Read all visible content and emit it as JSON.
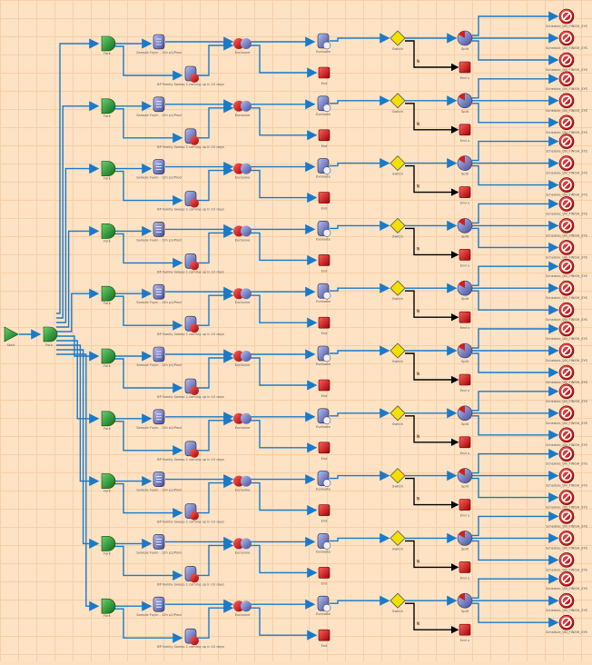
{
  "diagram": {
    "start": {
      "label": "Start",
      "icon": "start-triangle-icon"
    },
    "main_fork": {
      "label": "Fork"
    },
    "colors": {
      "edge": "#1a7ac8",
      "no_edge": "#000000",
      "fork": "#1f8a2a",
      "end": "#d01818",
      "decision": "#f4e000",
      "background": "#fde2c4"
    },
    "row_template": {
      "fork": "Fork",
      "sample": "Sample Fuyin - 12h p1/Prod",
      "bp": "BP Family Sweep 1 coming up in 10 days",
      "exclusive": "Exclusive",
      "evaluate": "Evaluate",
      "end": "End",
      "switch": "Switch",
      "end_u": "End u",
      "split": "Split",
      "targets": [
        "Schedule_UN_FINISH_SYS",
        "Schedule_UN_FINISH_SYS",
        "Schedule_UN_FINISH_SYS"
      ],
      "edge_no": "N"
    },
    "rows": 10
  }
}
